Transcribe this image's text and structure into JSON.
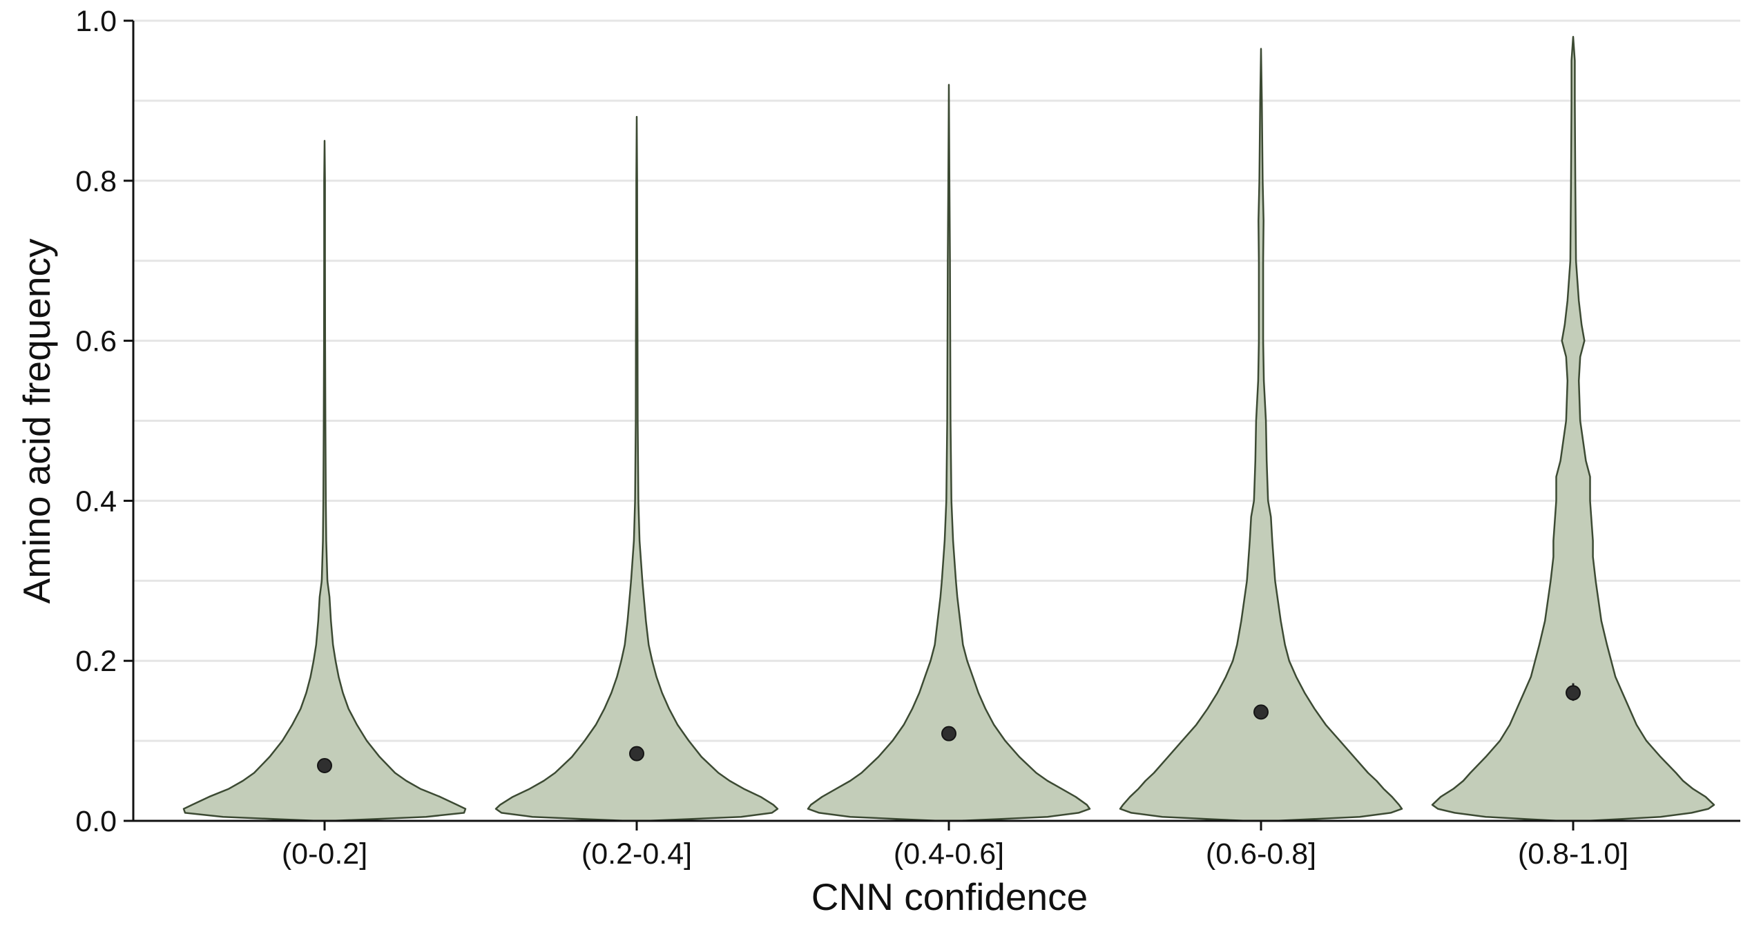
{
  "chart_data": {
    "type": "violin",
    "xlabel": "CNN confidence",
    "ylabel": "Amino acid frequency",
    "ylim": [
      0,
      1.0
    ],
    "yticks": [
      0.0,
      0.2,
      0.4,
      0.6,
      0.8,
      1.0
    ],
    "ytick_labels": [
      "0.0",
      "0.2",
      "0.4",
      "0.6",
      "0.8",
      "1.0"
    ],
    "grid": "horizontal every 0.1",
    "colors": {
      "violin_fill": "#c3cdb9",
      "violin_stroke": "#3c4a33",
      "mean_marker": "#2f2f2f"
    },
    "categories": [
      "(0-0.2]",
      "(0.2-0.4]",
      "(0.4-0.6]",
      "(0.6-0.8]",
      "(0.8-1.0]"
    ],
    "violins": [
      {
        "category": "(0-0.2]",
        "mean": 0.069,
        "ci": [
          0.066,
          0.072
        ],
        "max": 0.85,
        "density_profile": [
          [
            0.0,
            0.05
          ],
          [
            0.005,
            0.72
          ],
          [
            0.01,
            0.99
          ],
          [
            0.015,
            1.0
          ],
          [
            0.02,
            0.94
          ],
          [
            0.03,
            0.82
          ],
          [
            0.04,
            0.68
          ],
          [
            0.05,
            0.58
          ],
          [
            0.06,
            0.5
          ],
          [
            0.08,
            0.39
          ],
          [
            0.1,
            0.3
          ],
          [
            0.12,
            0.23
          ],
          [
            0.14,
            0.17
          ],
          [
            0.16,
            0.13
          ],
          [
            0.18,
            0.1
          ],
          [
            0.2,
            0.078
          ],
          [
            0.22,
            0.06
          ],
          [
            0.25,
            0.045
          ],
          [
            0.28,
            0.035
          ],
          [
            0.3,
            0.02
          ],
          [
            0.35,
            0.012
          ],
          [
            0.4,
            0.009
          ],
          [
            0.5,
            0.006
          ],
          [
            0.6,
            0.004
          ],
          [
            0.7,
            0.003
          ],
          [
            0.8,
            0.003
          ],
          [
            0.85,
            0.0
          ]
        ]
      },
      {
        "category": "(0.2-0.4]",
        "mean": 0.084,
        "ci": [
          0.081,
          0.087
        ],
        "max": 0.88,
        "density_profile": [
          [
            0.0,
            0.07
          ],
          [
            0.005,
            0.74
          ],
          [
            0.01,
            0.96
          ],
          [
            0.015,
            1.0
          ],
          [
            0.02,
            0.97
          ],
          [
            0.03,
            0.88
          ],
          [
            0.04,
            0.76
          ],
          [
            0.05,
            0.66
          ],
          [
            0.06,
            0.58
          ],
          [
            0.08,
            0.46
          ],
          [
            0.1,
            0.37
          ],
          [
            0.12,
            0.29
          ],
          [
            0.14,
            0.23
          ],
          [
            0.16,
            0.18
          ],
          [
            0.18,
            0.14
          ],
          [
            0.2,
            0.11
          ],
          [
            0.22,
            0.085
          ],
          [
            0.25,
            0.065
          ],
          [
            0.28,
            0.05
          ],
          [
            0.3,
            0.04
          ],
          [
            0.35,
            0.02
          ],
          [
            0.4,
            0.012
          ],
          [
            0.5,
            0.007
          ],
          [
            0.6,
            0.006
          ],
          [
            0.7,
            0.004
          ],
          [
            0.8,
            0.003
          ],
          [
            0.88,
            0.0
          ]
        ]
      },
      {
        "category": "(0.4-0.6]",
        "mean": 0.109,
        "ci": [
          0.105,
          0.113
        ],
        "max": 0.92,
        "density_profile": [
          [
            0.0,
            0.07
          ],
          [
            0.005,
            0.7
          ],
          [
            0.01,
            0.92
          ],
          [
            0.015,
            1.0
          ],
          [
            0.02,
            0.98
          ],
          [
            0.03,
            0.9
          ],
          [
            0.04,
            0.8
          ],
          [
            0.05,
            0.7
          ],
          [
            0.06,
            0.62
          ],
          [
            0.08,
            0.5
          ],
          [
            0.1,
            0.4
          ],
          [
            0.12,
            0.32
          ],
          [
            0.14,
            0.26
          ],
          [
            0.16,
            0.21
          ],
          [
            0.18,
            0.17
          ],
          [
            0.2,
            0.13
          ],
          [
            0.22,
            0.1
          ],
          [
            0.25,
            0.08
          ],
          [
            0.28,
            0.06
          ],
          [
            0.3,
            0.05
          ],
          [
            0.35,
            0.03
          ],
          [
            0.4,
            0.018
          ],
          [
            0.5,
            0.012
          ],
          [
            0.6,
            0.01
          ],
          [
            0.7,
            0.008
          ],
          [
            0.8,
            0.004
          ],
          [
            0.92,
            0.0
          ]
        ]
      },
      {
        "category": "(0.6-0.8]",
        "mean": 0.136,
        "ci": [
          0.131,
          0.141
        ],
        "max": 0.965,
        "density_profile": [
          [
            0.0,
            0.1
          ],
          [
            0.005,
            0.7
          ],
          [
            0.01,
            0.92
          ],
          [
            0.015,
            1.0
          ],
          [
            0.02,
            0.98
          ],
          [
            0.03,
            0.93
          ],
          [
            0.04,
            0.87
          ],
          [
            0.05,
            0.82
          ],
          [
            0.06,
            0.76
          ],
          [
            0.08,
            0.66
          ],
          [
            0.1,
            0.56
          ],
          [
            0.12,
            0.46
          ],
          [
            0.14,
            0.38
          ],
          [
            0.16,
            0.31
          ],
          [
            0.18,
            0.25
          ],
          [
            0.2,
            0.2
          ],
          [
            0.22,
            0.17
          ],
          [
            0.25,
            0.14
          ],
          [
            0.3,
            0.1
          ],
          [
            0.35,
            0.08
          ],
          [
            0.38,
            0.07
          ],
          [
            0.4,
            0.05
          ],
          [
            0.45,
            0.04
          ],
          [
            0.5,
            0.035
          ],
          [
            0.55,
            0.02
          ],
          [
            0.6,
            0.015
          ],
          [
            0.7,
            0.015
          ],
          [
            0.75,
            0.018
          ],
          [
            0.8,
            0.012
          ],
          [
            0.9,
            0.006
          ],
          [
            0.965,
            0.0
          ]
        ]
      },
      {
        "category": "(0.8-1.0]",
        "mean": 0.16,
        "ci": [
          0.15,
          0.172
        ],
        "max": 0.98,
        "density_profile": [
          [
            0.0,
            0.1
          ],
          [
            0.005,
            0.62
          ],
          [
            0.01,
            0.84
          ],
          [
            0.015,
            0.96
          ],
          [
            0.02,
            1.0
          ],
          [
            0.03,
            0.94
          ],
          [
            0.04,
            0.85
          ],
          [
            0.05,
            0.78
          ],
          [
            0.06,
            0.73
          ],
          [
            0.08,
            0.62
          ],
          [
            0.1,
            0.52
          ],
          [
            0.12,
            0.45
          ],
          [
            0.14,
            0.4
          ],
          [
            0.16,
            0.35
          ],
          [
            0.18,
            0.3
          ],
          [
            0.2,
            0.27
          ],
          [
            0.22,
            0.24
          ],
          [
            0.25,
            0.2
          ],
          [
            0.3,
            0.16
          ],
          [
            0.33,
            0.14
          ],
          [
            0.35,
            0.14
          ],
          [
            0.4,
            0.12
          ],
          [
            0.43,
            0.12
          ],
          [
            0.45,
            0.09
          ],
          [
            0.5,
            0.05
          ],
          [
            0.55,
            0.04
          ],
          [
            0.58,
            0.05
          ],
          [
            0.6,
            0.08
          ],
          [
            0.62,
            0.06
          ],
          [
            0.65,
            0.04
          ],
          [
            0.7,
            0.02
          ],
          [
            0.8,
            0.015
          ],
          [
            0.9,
            0.012
          ],
          [
            0.95,
            0.012
          ],
          [
            0.98,
            0.0
          ]
        ]
      }
    ]
  }
}
